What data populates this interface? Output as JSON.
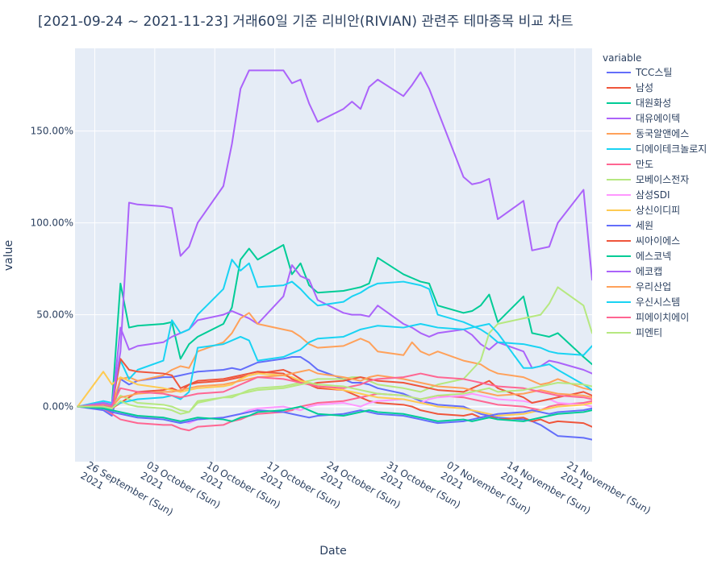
{
  "chart_data": {
    "type": "line",
    "title": "[2021-09-24 ~ 2021-11-23] 거래60일 기준 리비안(RIVIAN) 관련주 테마종목 비교 차트",
    "xlabel": "Date",
    "ylabel": "value",
    "legend_title": "variable",
    "legend_position": "right",
    "ylim": [
      -0.3,
      1.95
    ],
    "y_ticks": [
      {
        "value": 0.0,
        "label": "0.00%"
      },
      {
        "value": 0.5,
        "label": "50.00%"
      },
      {
        "value": 1.0,
        "label": "100.00%"
      },
      {
        "value": 1.5,
        "label": "150.00%"
      }
    ],
    "x_range": [
      -0.3,
      60.0
    ],
    "x_ticks": [
      {
        "x": 2,
        "line1": "26 September (Sun)",
        "line2": "2021"
      },
      {
        "x": 9,
        "line1": "03 October (Sun)",
        "line2": "2021"
      },
      {
        "x": 16,
        "line1": "10 October (Sun)",
        "line2": "2021"
      },
      {
        "x": 23,
        "line1": "17 October (Sun)",
        "line2": "2021"
      },
      {
        "x": 30,
        "line1": "24 October (Sun)",
        "line2": "2021"
      },
      {
        "x": 37,
        "line1": "31 October (Sun)",
        "line2": "2021"
      },
      {
        "x": 44,
        "line1": "07 November (Sun)",
        "line2": "2021"
      },
      {
        "x": 51,
        "line1": "14 November (Sun)",
        "line2": "2021"
      },
      {
        "x": 58,
        "line1": "21 November (Sun)",
        "line2": "2021"
      }
    ],
    "x_day_offsets": [
      0,
      3,
      4,
      5,
      6,
      7,
      10,
      11,
      12,
      13,
      14,
      17,
      18,
      19,
      20,
      21,
      24,
      25,
      26,
      27,
      28,
      31,
      32,
      33,
      34,
      35,
      38,
      39,
      40,
      41,
      42,
      45,
      46,
      47,
      48,
      49,
      52,
      53,
      54,
      55,
      56,
      59,
      60
    ],
    "series": [
      {
        "name": "TCC스틸",
        "color": "#636efa",
        "values": [
          0,
          -0.02,
          -0.05,
          0.15,
          0.12,
          0.14,
          0.16,
          0.16,
          0.17,
          0.18,
          0.19,
          0.2,
          0.21,
          0.2,
          0.22,
          0.24,
          0.26,
          0.27,
          0.27,
          0.24,
          0.2,
          0.15,
          0.13,
          0.13,
          0.12,
          0.1,
          0.07,
          0.05,
          0.03,
          0.02,
          0.01,
          0.0,
          -0.02,
          -0.04,
          -0.05,
          -0.06,
          -0.07,
          -0.08,
          -0.1,
          -0.13,
          -0.16,
          -0.17,
          -0.18
        ]
      },
      {
        "name": "남성",
        "color": "#EF553B",
        "values": [
          0,
          0.01,
          -0.01,
          0.02,
          0.05,
          0.08,
          0.09,
          0.1,
          0.08,
          0.12,
          0.13,
          0.14,
          0.15,
          0.16,
          0.17,
          0.18,
          0.2,
          0.18,
          0.15,
          0.12,
          0.1,
          0.09,
          0.07,
          0.05,
          0.03,
          0.02,
          0.01,
          0.0,
          -0.02,
          -0.03,
          -0.04,
          -0.05,
          -0.04,
          -0.06,
          -0.05,
          -0.07,
          -0.06,
          -0.08,
          -0.07,
          -0.09,
          -0.08,
          -0.09,
          -0.11
        ]
      },
      {
        "name": "대원화성",
        "color": "#00cc96",
        "values": [
          0,
          0.02,
          0.01,
          0.67,
          0.43,
          0.44,
          0.45,
          0.46,
          0.26,
          0.34,
          0.38,
          0.45,
          0.54,
          0.8,
          0.86,
          0.8,
          0.88,
          0.72,
          0.78,
          0.66,
          0.62,
          0.63,
          0.64,
          0.65,
          0.67,
          0.81,
          0.72,
          0.7,
          0.68,
          0.67,
          0.55,
          0.51,
          0.52,
          0.55,
          0.61,
          0.46,
          0.6,
          0.4,
          0.39,
          0.38,
          0.4,
          0.27,
          0.23
        ]
      },
      {
        "name": "대유에이텍",
        "color": "#ab63fa",
        "values": [
          0,
          0.0,
          -0.01,
          0.43,
          0.31,
          0.33,
          0.35,
          0.38,
          0.4,
          0.42,
          0.47,
          0.5,
          0.52,
          0.5,
          0.48,
          0.45,
          0.6,
          0.77,
          0.71,
          0.69,
          0.58,
          0.51,
          0.5,
          0.5,
          0.49,
          0.55,
          0.45,
          0.43,
          0.4,
          0.38,
          0.4,
          0.42,
          0.39,
          0.34,
          0.31,
          0.35,
          0.3,
          0.21,
          0.22,
          0.25,
          0.24,
          0.2,
          0.18
        ]
      },
      {
        "name": "동국알앤에스",
        "color": "#FFA15A",
        "values": [
          0,
          0.01,
          0.0,
          0.15,
          0.16,
          0.14,
          0.17,
          0.2,
          0.22,
          0.21,
          0.3,
          0.35,
          0.4,
          0.48,
          0.51,
          0.45,
          0.42,
          0.41,
          0.38,
          0.34,
          0.32,
          0.33,
          0.35,
          0.37,
          0.35,
          0.3,
          0.28,
          0.35,
          0.3,
          0.28,
          0.3,
          0.25,
          0.24,
          0.23,
          0.2,
          0.18,
          0.16,
          0.14,
          0.12,
          0.13,
          0.15,
          0.1,
          0.09
        ]
      },
      {
        "name": "디에이테크놀로지",
        "color": "#19d3f3",
        "values": [
          0,
          0.03,
          0.02,
          0.25,
          0.15,
          0.2,
          0.25,
          0.47,
          0.4,
          0.42,
          0.5,
          0.64,
          0.8,
          0.74,
          0.78,
          0.65,
          0.66,
          0.68,
          0.64,
          0.59,
          0.55,
          0.57,
          0.6,
          0.62,
          0.65,
          0.67,
          0.68,
          0.67,
          0.66,
          0.64,
          0.5,
          0.46,
          0.44,
          0.42,
          0.39,
          0.35,
          0.34,
          0.33,
          0.32,
          0.3,
          0.29,
          0.28,
          0.33
        ]
      },
      {
        "name": "만도",
        "color": "#FF6692",
        "values": [
          0,
          -0.01,
          -0.04,
          -0.07,
          -0.08,
          -0.09,
          -0.1,
          -0.1,
          -0.12,
          -0.13,
          -0.11,
          -0.1,
          -0.08,
          -0.07,
          -0.05,
          -0.04,
          -0.03,
          -0.02,
          0.0,
          0.01,
          0.02,
          0.03,
          0.04,
          0.05,
          0.06,
          0.07,
          0.06,
          0.05,
          0.04,
          0.05,
          0.06,
          0.05,
          0.04,
          0.03,
          0.02,
          0.01,
          0.0,
          -0.01,
          -0.02,
          0.0,
          0.01,
          0.02,
          0.03
        ]
      },
      {
        "name": "모베이스전자",
        "color": "#B6E880",
        "values": [
          0,
          0.02,
          0.01,
          0.06,
          0.04,
          0.02,
          0.01,
          0.0,
          -0.02,
          -0.03,
          0.03,
          0.05,
          0.05,
          0.07,
          0.09,
          0.1,
          0.11,
          0.12,
          0.13,
          0.14,
          0.15,
          0.15,
          0.16,
          0.16,
          0.14,
          0.12,
          0.1,
          0.09,
          0.08,
          0.1,
          0.12,
          0.15,
          0.2,
          0.25,
          0.4,
          0.45,
          0.48,
          0.49,
          0.5,
          0.56,
          0.65,
          0.55,
          0.4
        ]
      },
      {
        "name": "삼성SDI",
        "color": "#FF97FF",
        "values": [
          0,
          -0.01,
          -0.02,
          -0.03,
          -0.05,
          -0.06,
          -0.06,
          -0.07,
          -0.08,
          -0.09,
          -0.07,
          -0.06,
          -0.05,
          -0.04,
          -0.02,
          -0.01,
          0.0,
          -0.01,
          -0.02,
          0.0,
          0.01,
          0.02,
          0.01,
          0.0,
          0.02,
          0.03,
          0.04,
          0.03,
          0.02,
          0.04,
          0.05,
          0.06,
          0.07,
          0.06,
          0.05,
          0.04,
          0.03,
          0.02,
          0.03,
          0.04,
          0.02,
          0.01,
          0.0
        ]
      },
      {
        "name": "상신이디피",
        "color": "#FECB52",
        "values": [
          0,
          0.19,
          0.12,
          0.16,
          0.14,
          0.12,
          0.1,
          0.09,
          0.08,
          0.09,
          0.1,
          0.11,
          0.12,
          0.15,
          0.17,
          0.18,
          0.17,
          0.16,
          0.14,
          0.13,
          0.11,
          0.09,
          0.08,
          0.07,
          0.06,
          0.05,
          0.04,
          0.03,
          0.02,
          0.01,
          0.0,
          -0.01,
          -0.02,
          -0.03,
          -0.04,
          -0.05,
          -0.04,
          -0.03,
          -0.02,
          -0.01,
          0.0,
          0.01,
          0.02
        ]
      },
      {
        "name": "세원",
        "color": "#636efa",
        "values": [
          0,
          -0.01,
          -0.03,
          -0.04,
          -0.05,
          -0.06,
          -0.07,
          -0.08,
          -0.09,
          -0.08,
          -0.07,
          -0.06,
          -0.05,
          -0.04,
          -0.03,
          -0.02,
          -0.03,
          -0.04,
          -0.05,
          -0.06,
          -0.05,
          -0.04,
          -0.03,
          -0.02,
          -0.03,
          -0.04,
          -0.05,
          -0.06,
          -0.07,
          -0.08,
          -0.09,
          -0.08,
          -0.07,
          -0.06,
          -0.05,
          -0.04,
          -0.03,
          -0.02,
          -0.03,
          -0.04,
          -0.03,
          -0.02,
          -0.01
        ]
      },
      {
        "name": "씨아이에스",
        "color": "#EF553B",
        "values": [
          0,
          0.01,
          0.0,
          0.26,
          0.2,
          0.19,
          0.18,
          0.17,
          0.1,
          0.12,
          0.14,
          0.15,
          0.16,
          0.17,
          0.18,
          0.19,
          0.18,
          0.15,
          0.13,
          0.12,
          0.13,
          0.14,
          0.15,
          0.16,
          0.15,
          0.14,
          0.13,
          0.12,
          0.11,
          0.1,
          0.09,
          0.08,
          0.1,
          0.12,
          0.14,
          0.1,
          0.05,
          0.02,
          0.03,
          0.04,
          0.05,
          0.08,
          0.06
        ]
      },
      {
        "name": "에스코넥",
        "color": "#00cc96",
        "values": [
          0,
          -0.01,
          -0.02,
          -0.03,
          -0.04,
          -0.05,
          -0.06,
          -0.07,
          -0.08,
          -0.07,
          -0.06,
          -0.07,
          -0.08,
          -0.06,
          -0.05,
          -0.03,
          -0.02,
          -0.01,
          0.0,
          -0.02,
          -0.04,
          -0.05,
          -0.04,
          -0.03,
          -0.02,
          -0.03,
          -0.04,
          -0.05,
          -0.06,
          -0.07,
          -0.08,
          -0.07,
          -0.08,
          -0.07,
          -0.06,
          -0.07,
          -0.08,
          -0.07,
          -0.06,
          -0.05,
          -0.04,
          -0.03,
          -0.02
        ]
      },
      {
        "name": "에코캡",
        "color": "#ab63fa",
        "values": [
          0,
          0.02,
          0.01,
          0.3,
          1.11,
          1.1,
          1.09,
          1.08,
          0.82,
          0.87,
          1.0,
          1.2,
          1.43,
          1.73,
          1.83,
          1.83,
          1.83,
          1.76,
          1.78,
          1.65,
          1.55,
          1.62,
          1.66,
          1.62,
          1.74,
          1.78,
          1.69,
          1.75,
          1.82,
          1.73,
          1.61,
          1.25,
          1.21,
          1.22,
          1.24,
          1.02,
          1.12,
          0.85,
          0.86,
          0.87,
          1.0,
          1.18,
          0.69
        ]
      },
      {
        "name": "우리산업",
        "color": "#FFA15A",
        "values": [
          0,
          0.01,
          0.0,
          0.05,
          0.06,
          0.07,
          0.08,
          0.08,
          0.09,
          0.1,
          0.11,
          0.12,
          0.13,
          0.14,
          0.15,
          0.16,
          0.17,
          0.18,
          0.19,
          0.2,
          0.18,
          0.16,
          0.15,
          0.14,
          0.16,
          0.17,
          0.15,
          0.14,
          0.13,
          0.12,
          0.11,
          0.1,
          0.09,
          0.08,
          0.07,
          0.06,
          0.07,
          0.08,
          0.09,
          0.08,
          0.07,
          0.06,
          0.05
        ]
      },
      {
        "name": "우신시스템",
        "color": "#19d3f3",
        "values": [
          0,
          0.01,
          0.0,
          0.02,
          0.03,
          0.04,
          0.05,
          0.06,
          0.04,
          0.08,
          0.32,
          0.34,
          0.36,
          0.38,
          0.36,
          0.25,
          0.27,
          0.29,
          0.31,
          0.35,
          0.37,
          0.38,
          0.4,
          0.42,
          0.43,
          0.44,
          0.43,
          0.44,
          0.45,
          0.44,
          0.43,
          0.42,
          0.43,
          0.44,
          0.45,
          0.4,
          0.21,
          0.21,
          0.22,
          0.23,
          0.2,
          0.12,
          0.09
        ]
      },
      {
        "name": "피에이치에이",
        "color": "#FF6692",
        "values": [
          0,
          0.01,
          0.0,
          0.1,
          0.09,
          0.08,
          0.07,
          0.06,
          0.05,
          0.06,
          0.07,
          0.08,
          0.1,
          0.12,
          0.14,
          0.16,
          0.15,
          0.14,
          0.13,
          0.12,
          0.11,
          0.1,
          0.11,
          0.12,
          0.14,
          0.15,
          0.16,
          0.17,
          0.18,
          0.17,
          0.16,
          0.15,
          0.14,
          0.13,
          0.12,
          0.11,
          0.1,
          0.09,
          0.08,
          0.07,
          0.06,
          0.05,
          0.04
        ]
      },
      {
        "name": "피엔티",
        "color": "#B6E880",
        "values": [
          0,
          0.0,
          -0.01,
          0.03,
          0.01,
          0.0,
          -0.01,
          -0.02,
          -0.04,
          -0.03,
          0.02,
          0.05,
          0.06,
          0.07,
          0.08,
          0.09,
          0.1,
          0.11,
          0.12,
          0.13,
          0.12,
          0.11,
          0.1,
          0.09,
          0.08,
          0.07,
          0.06,
          0.05,
          0.04,
          0.05,
          0.06,
          0.07,
          0.08,
          0.09,
          0.1,
          0.08,
          0.09,
          0.1,
          0.11,
          0.12,
          0.13,
          0.12,
          0.11
        ]
      }
    ]
  }
}
